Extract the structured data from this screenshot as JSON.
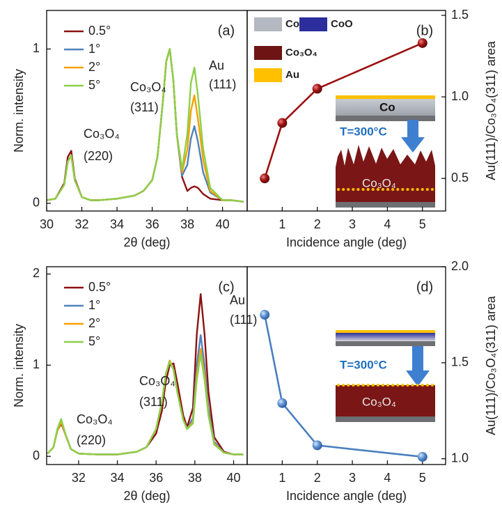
{
  "chart_data": [
    {
      "type": "line",
      "panel_label": "(a)",
      "x_label": "2θ (deg)",
      "y_label": "Norm. intensity",
      "legend": "upper left",
      "xlim": [
        30,
        41.4
      ],
      "ylim": [
        -0.05,
        1.25
      ],
      "xticks": [
        30,
        32,
        34,
        36,
        38,
        40
      ],
      "yticks": [
        0,
        1
      ],
      "x": [
        30,
        30.5,
        31,
        31.2,
        31.4,
        31.6,
        32,
        32.5,
        33,
        34,
        35,
        35.5,
        36,
        36.3,
        36.6,
        36.8,
        37,
        37.2,
        37.4,
        37.7,
        38,
        38.2,
        38.4,
        38.6,
        38.9,
        39.3,
        40,
        40.5,
        41.2
      ],
      "series": [
        {
          "name": "0.5°",
          "color": "#8b1111",
          "values": [
            0.02,
            0.03,
            0.13,
            0.3,
            0.34,
            0.16,
            0.04,
            0.02,
            0.02,
            0.03,
            0.05,
            0.08,
            0.15,
            0.3,
            0.65,
            0.92,
            1,
            0.8,
            0.45,
            0.17,
            0.08,
            0.1,
            0.11,
            0.1,
            0.06,
            0.03,
            0.02,
            0.02,
            0.01
          ]
        },
        {
          "name": "1°",
          "color": "#4f81bd",
          "values": [
            0.02,
            0.03,
            0.12,
            0.27,
            0.31,
            0.15,
            0.04,
            0.02,
            0.02,
            0.03,
            0.05,
            0.08,
            0.15,
            0.3,
            0.65,
            0.92,
            1,
            0.8,
            0.45,
            0.18,
            0.25,
            0.42,
            0.5,
            0.4,
            0.2,
            0.07,
            0.02,
            0.02,
            0.01
          ]
        },
        {
          "name": "2°",
          "color": "#f7a000",
          "values": [
            0.02,
            0.03,
            0.12,
            0.27,
            0.31,
            0.15,
            0.04,
            0.02,
            0.02,
            0.03,
            0.05,
            0.08,
            0.15,
            0.3,
            0.65,
            0.92,
            1,
            0.8,
            0.45,
            0.2,
            0.35,
            0.6,
            0.7,
            0.55,
            0.28,
            0.08,
            0.02,
            0.02,
            0.01
          ]
        },
        {
          "name": "5°",
          "color": "#8ccf4a",
          "values": [
            0.02,
            0.03,
            0.12,
            0.27,
            0.31,
            0.15,
            0.04,
            0.02,
            0.02,
            0.03,
            0.05,
            0.08,
            0.15,
            0.3,
            0.65,
            0.92,
            1,
            0.8,
            0.45,
            0.22,
            0.45,
            0.78,
            0.88,
            0.7,
            0.35,
            0.1,
            0.02,
            0.02,
            0.01
          ]
        }
      ],
      "annotations": [
        "Co₃O₄",
        "(220)",
        "Co₃O₄",
        "(311)",
        "Au",
        "(111)"
      ]
    },
    {
      "type": "line",
      "markers": true,
      "panel_label": "(b)",
      "x_label": "Incidence angle (deg)",
      "y_label": "Au(111)/Co₃O₄(311) area",
      "y_axis": "right",
      "xlim": [
        0,
        5.66
      ],
      "ylim": [
        0.3,
        1.53
      ],
      "xticks": [
        1,
        2,
        3,
        4,
        5
      ],
      "yticks": [
        0.5,
        {
          "value": 1,
          "label": "1.0"
        },
        1.5
      ],
      "x": [
        0.5,
        1,
        2,
        5
      ],
      "values": [
        0.5,
        0.84,
        1.05,
        1.33
      ],
      "color": "#9b1010",
      "materials": [
        {
          "name": "Co",
          "color": "#b4b8c0"
        },
        {
          "name": "CoO",
          "color": "#2b2e9c"
        },
        {
          "name": "Co₃O₄",
          "color": "#6e1414"
        },
        {
          "name": "Au",
          "color": "#ffc000"
        }
      ],
      "inset_labels": [
        "Co",
        "T=300°C",
        "Co₃O₄"
      ]
    },
    {
      "type": "line",
      "panel_label": "(c)",
      "x_label": "2θ (deg)",
      "y_label": "Norm. intensity",
      "legend": "upper left",
      "xlim": [
        30.35,
        40.7
      ],
      "ylim": [
        -0.09,
        2.08
      ],
      "xticks": [
        32,
        34,
        36,
        38,
        40
      ],
      "yticks": [
        0,
        1,
        2
      ],
      "x": [
        30.4,
        30.7,
        30.9,
        31.1,
        31.3,
        31.6,
        32,
        33,
        34,
        35,
        35.5,
        36,
        36.3,
        36.5,
        36.7,
        36.9,
        37.1,
        37.4,
        37.6,
        37.9,
        38.1,
        38.3,
        38.5,
        38.7,
        39,
        39.5,
        40,
        40.5
      ],
      "series": [
        {
          "name": "0.5°",
          "color": "#8b1111",
          "values": [
            0.03,
            0.1,
            0.28,
            0.36,
            0.25,
            0.08,
            0.03,
            0.02,
            0.02,
            0.05,
            0.1,
            0.25,
            0.5,
            0.82,
            1.0,
            1.02,
            0.8,
            0.45,
            0.32,
            0.53,
            1.34,
            1.78,
            1.34,
            0.71,
            0.21,
            0.05,
            0.02,
            0.02
          ]
        },
        {
          "name": "1°",
          "color": "#4f81bd",
          "values": [
            0.03,
            0.1,
            0.28,
            0.38,
            0.25,
            0.08,
            0.03,
            0.02,
            0.02,
            0.05,
            0.1,
            0.3,
            0.6,
            0.9,
            1.05,
            0.95,
            0.7,
            0.4,
            0.3,
            0.42,
            1.0,
            1.33,
            1.0,
            0.53,
            0.16,
            0.04,
            0.02,
            0.02
          ]
        },
        {
          "name": "2°",
          "color": "#f7a000",
          "values": [
            0.03,
            0.1,
            0.28,
            0.38,
            0.25,
            0.08,
            0.03,
            0.02,
            0.02,
            0.05,
            0.1,
            0.3,
            0.6,
            0.9,
            1.05,
            0.95,
            0.7,
            0.4,
            0.3,
            0.38,
            0.89,
            1.18,
            0.89,
            0.47,
            0.14,
            0.04,
            0.02,
            0.02
          ]
        },
        {
          "name": "5°",
          "color": "#8ccf4a",
          "values": [
            0.03,
            0.1,
            0.3,
            0.41,
            0.26,
            0.08,
            0.03,
            0.02,
            0.02,
            0.05,
            0.1,
            0.3,
            0.6,
            0.9,
            1.04,
            0.95,
            0.7,
            0.4,
            0.3,
            0.36,
            0.84,
            1.12,
            0.84,
            0.45,
            0.13,
            0.04,
            0.02,
            0.02
          ]
        }
      ],
      "annotations": [
        "Co₃O₄",
        "(220)",
        "Co₃O₄",
        "(311)",
        "Au",
        "(111)"
      ]
    },
    {
      "type": "line",
      "markers": true,
      "panel_label": "(d)",
      "x_label": "Incidence angle (deg)",
      "y_label": "Au(111)/Co₃O₄(311) area",
      "y_axis": "right",
      "xlim": [
        0,
        5.66
      ],
      "ylim": [
        0.97,
        2.0
      ],
      "xticks": [
        1,
        2,
        3,
        4,
        5
      ],
      "yticks": [
        {
          "value": 1,
          "label": "1.0"
        },
        1.5,
        {
          "value": 2,
          "label": "2.0"
        }
      ],
      "x": [
        0.5,
        1,
        2,
        5
      ],
      "values": [
        1.75,
        1.29,
        1.07,
        1.01
      ],
      "color": "#4a7fc0",
      "inset_labels": [
        "T=300°C",
        "Co₃O₄"
      ]
    }
  ]
}
